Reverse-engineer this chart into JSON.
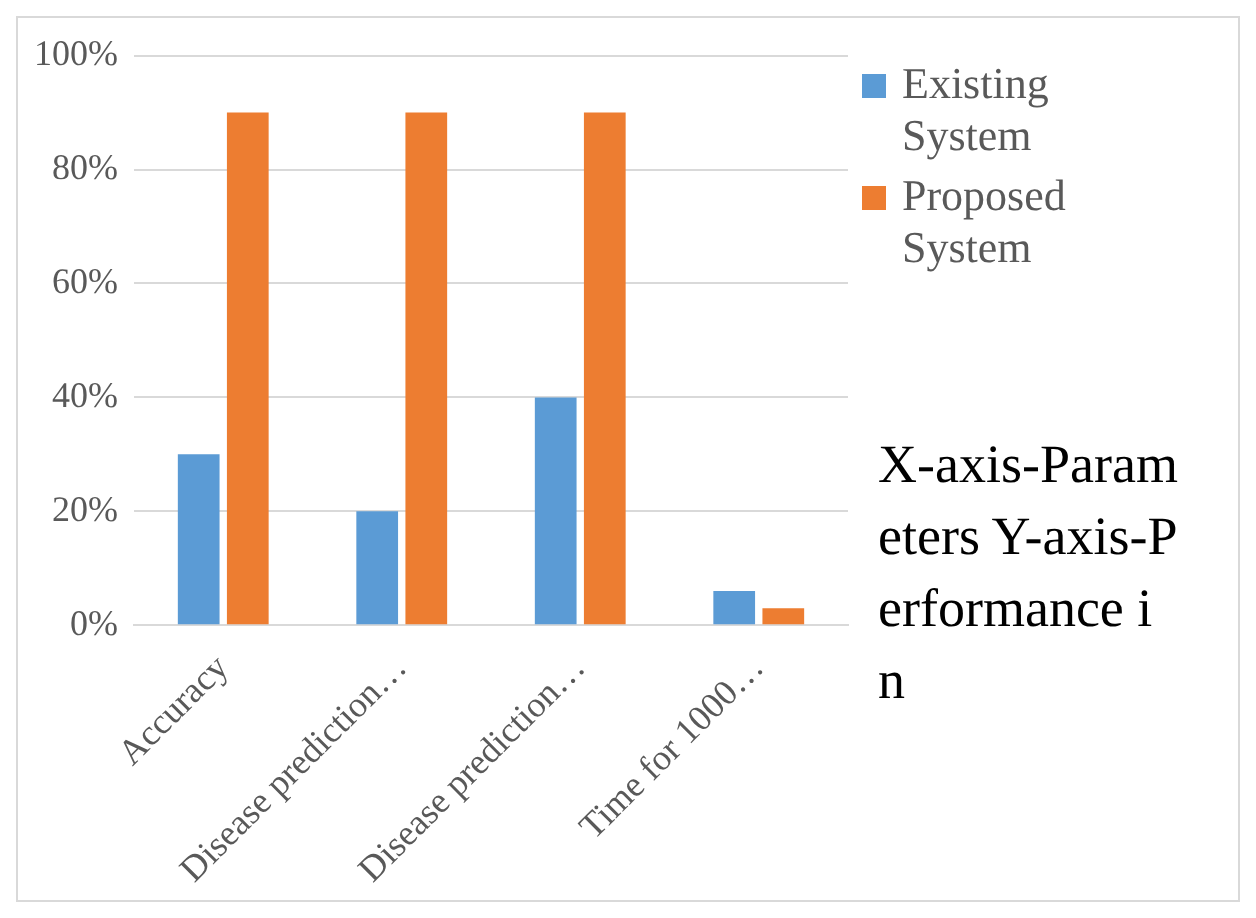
{
  "chart_data": {
    "type": "bar",
    "categories": [
      "Accuracy",
      "Disease prediction…",
      "Disease prediction…",
      "Time for 1000…"
    ],
    "series": [
      {
        "name": "Existing System",
        "color": "#5b9bd5",
        "values": [
          30,
          20,
          40,
          6
        ]
      },
      {
        "name": "Proposed System",
        "color": "#ed7d31",
        "values": [
          90,
          90,
          90,
          3
        ]
      }
    ],
    "ylim": [
      0,
      100
    ],
    "yticks": [
      {
        "value": 0,
        "label": "0%"
      },
      {
        "value": 20,
        "label": "20%"
      },
      {
        "value": 40,
        "label": "40%"
      },
      {
        "value": 60,
        "label": "60%"
      },
      {
        "value": 80,
        "label": "80%"
      },
      {
        "value": 100,
        "label": "100%"
      }
    ],
    "grid": "y",
    "legend": "top right",
    "annotations": [
      "X-axis-Parameters Y-axis-Performance in"
    ]
  }
}
